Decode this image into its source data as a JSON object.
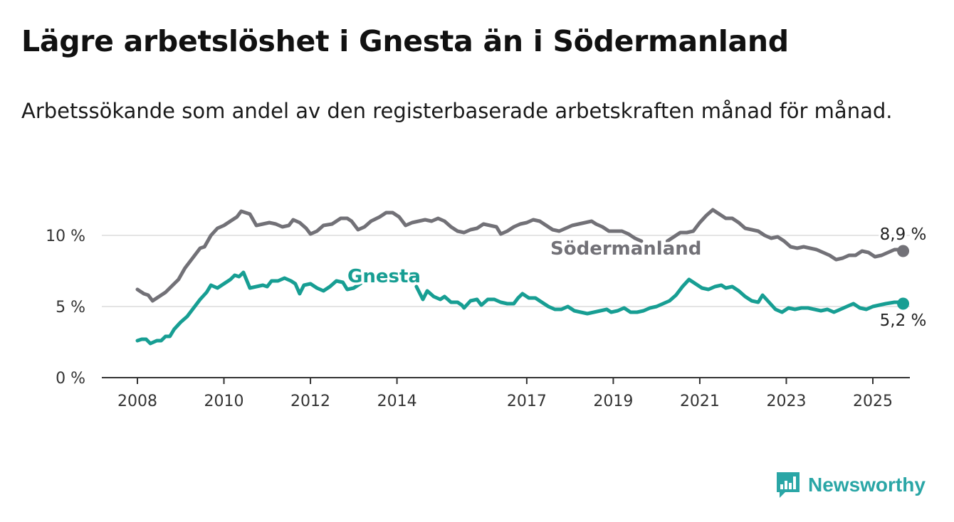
{
  "title": "Lägre arbetslöshet i Gnesta än i Södermanland",
  "subtitle": "Arbetssökande som andel av den registerbaserade arbetskraften månad för månad.",
  "brand": {
    "name": "Newsworthy",
    "icon": "newsworthy-logo-icon",
    "color": "#2aa6a6"
  },
  "chart_data": {
    "type": "line",
    "title": "Lägre arbetslöshet i Gnesta än i Södermanland",
    "subtitle": "Arbetssökande som andel av den registerbaserade arbetskraften månad för månad.",
    "xlabel": "",
    "ylabel": "",
    "xlim": [
      2008,
      2025
    ],
    "ylim": [
      0,
      10
    ],
    "x_ticks": [
      "2008",
      "2010",
      "2012",
      "2014",
      "2017",
      "2019",
      "2021",
      "2023",
      "2025"
    ],
    "y_ticks": [
      "0 %",
      "5 %",
      "10 %"
    ],
    "grid": "horizontal",
    "series": [
      {
        "name": "Södermanland",
        "color": "#727177",
        "end_label": "8,9 %",
        "points": [
          [
            2008.0,
            6.2
          ],
          [
            2008.15,
            5.9
          ],
          [
            2008.25,
            5.8
          ],
          [
            2008.35,
            5.4
          ],
          [
            2008.5,
            5.7
          ],
          [
            2008.65,
            6.0
          ],
          [
            2008.85,
            6.6
          ],
          [
            2008.95,
            6.9
          ],
          [
            2009.1,
            7.7
          ],
          [
            2009.3,
            8.5
          ],
          [
            2009.45,
            9.1
          ],
          [
            2009.55,
            9.2
          ],
          [
            2009.7,
            10.0
          ],
          [
            2009.85,
            10.5
          ],
          [
            2010.0,
            10.7
          ],
          [
            2010.15,
            11.0
          ],
          [
            2010.3,
            11.3
          ],
          [
            2010.4,
            11.7
          ],
          [
            2010.5,
            11.6
          ],
          [
            2010.6,
            11.5
          ],
          [
            2010.75,
            10.7
          ],
          [
            2010.9,
            10.8
          ],
          [
            2011.05,
            10.9
          ],
          [
            2011.2,
            10.8
          ],
          [
            2011.35,
            10.6
          ],
          [
            2011.5,
            10.7
          ],
          [
            2011.6,
            11.1
          ],
          [
            2011.75,
            10.9
          ],
          [
            2011.9,
            10.5
          ],
          [
            2012.0,
            10.1
          ],
          [
            2012.15,
            10.3
          ],
          [
            2012.3,
            10.7
          ],
          [
            2012.5,
            10.8
          ],
          [
            2012.7,
            11.2
          ],
          [
            2012.85,
            11.2
          ],
          [
            2012.95,
            11.0
          ],
          [
            2013.1,
            10.4
          ],
          [
            2013.25,
            10.6
          ],
          [
            2013.4,
            11.0
          ],
          [
            2013.6,
            11.3
          ],
          [
            2013.75,
            11.6
          ],
          [
            2013.9,
            11.6
          ],
          [
            2014.05,
            11.3
          ],
          [
            2014.2,
            10.7
          ],
          [
            2014.35,
            10.9
          ],
          [
            2014.5,
            11.0
          ],
          [
            2014.65,
            11.1
          ],
          [
            2014.8,
            11.0
          ],
          [
            2014.95,
            11.2
          ],
          [
            2015.1,
            11.0
          ],
          [
            2015.25,
            10.6
          ],
          [
            2015.4,
            10.3
          ],
          [
            2015.55,
            10.2
          ],
          [
            2015.7,
            10.4
          ],
          [
            2015.85,
            10.5
          ],
          [
            2016.0,
            10.8
          ],
          [
            2016.15,
            10.7
          ],
          [
            2016.3,
            10.6
          ],
          [
            2016.4,
            10.1
          ],
          [
            2016.55,
            10.3
          ],
          [
            2016.7,
            10.6
          ],
          [
            2016.85,
            10.8
          ],
          [
            2017.0,
            10.9
          ],
          [
            2017.15,
            11.1
          ],
          [
            2017.3,
            11.0
          ],
          [
            2017.45,
            10.7
          ],
          [
            2017.6,
            10.4
          ],
          [
            2017.75,
            10.3
          ],
          [
            2017.9,
            10.5
          ],
          [
            2018.05,
            10.7
          ],
          [
            2018.2,
            10.8
          ],
          [
            2018.35,
            10.9
          ],
          [
            2018.5,
            11.0
          ],
          [
            2018.6,
            10.8
          ],
          [
            2018.75,
            10.6
          ],
          [
            2018.9,
            10.3
          ],
          [
            2019.05,
            10.3
          ],
          [
            2019.2,
            10.3
          ],
          [
            2019.35,
            10.1
          ],
          [
            2019.5,
            9.8
          ],
          [
            2019.65,
            9.6
          ]
        ]
      },
      {
        "name": "",
        "color": "#727177",
        "points": [
          [
            2020.25,
            9.6
          ],
          [
            2020.4,
            9.9
          ],
          [
            2020.55,
            10.2
          ],
          [
            2020.7,
            10.2
          ],
          [
            2020.85,
            10.3
          ],
          [
            2021.0,
            10.9
          ],
          [
            2021.15,
            11.4
          ],
          [
            2021.3,
            11.8
          ],
          [
            2021.45,
            11.5
          ],
          [
            2021.6,
            11.2
          ],
          [
            2021.75,
            11.2
          ],
          [
            2021.9,
            10.9
          ],
          [
            2022.05,
            10.5
          ],
          [
            2022.2,
            10.4
          ],
          [
            2022.35,
            10.3
          ],
          [
            2022.5,
            10.0
          ],
          [
            2022.65,
            9.8
          ],
          [
            2022.8,
            9.9
          ],
          [
            2022.95,
            9.6
          ],
          [
            2023.1,
            9.2
          ],
          [
            2023.25,
            9.1
          ],
          [
            2023.4,
            9.2
          ],
          [
            2023.55,
            9.1
          ],
          [
            2023.7,
            9.0
          ],
          [
            2023.85,
            8.8
          ],
          [
            2024.0,
            8.6
          ],
          [
            2024.15,
            8.3
          ],
          [
            2024.3,
            8.4
          ],
          [
            2024.45,
            8.6
          ],
          [
            2024.6,
            8.6
          ],
          [
            2024.75,
            8.9
          ],
          [
            2024.9,
            8.8
          ],
          [
            2025.05,
            8.5
          ],
          [
            2025.2,
            8.6
          ],
          [
            2025.35,
            8.8
          ],
          [
            2025.5,
            9.0
          ],
          [
            2025.6,
            9.0
          ],
          [
            2025.7,
            8.9
          ]
        ]
      },
      {
        "name": "Gnesta",
        "color": "#179e93",
        "end_label": "5,2 %",
        "points": [
          [
            2008.0,
            2.6
          ],
          [
            2008.1,
            2.7
          ],
          [
            2008.2,
            2.7
          ],
          [
            2008.3,
            2.4
          ],
          [
            2008.45,
            2.6
          ],
          [
            2008.55,
            2.6
          ],
          [
            2008.65,
            2.9
          ],
          [
            2008.75,
            2.9
          ],
          [
            2008.85,
            3.4
          ],
          [
            2009.0,
            3.9
          ],
          [
            2009.15,
            4.3
          ],
          [
            2009.3,
            4.9
          ],
          [
            2009.45,
            5.5
          ],
          [
            2009.6,
            6.0
          ],
          [
            2009.7,
            6.5
          ],
          [
            2009.85,
            6.3
          ],
          [
            2010.0,
            6.6
          ],
          [
            2010.15,
            6.9
          ],
          [
            2010.25,
            7.2
          ],
          [
            2010.35,
            7.1
          ],
          [
            2010.45,
            7.4
          ],
          [
            2010.6,
            6.3
          ],
          [
            2010.75,
            6.4
          ],
          [
            2010.9,
            6.5
          ],
          [
            2011.0,
            6.4
          ],
          [
            2011.1,
            6.8
          ],
          [
            2011.25,
            6.8
          ],
          [
            2011.4,
            7.0
          ],
          [
            2011.55,
            6.8
          ],
          [
            2011.65,
            6.6
          ],
          [
            2011.75,
            5.9
          ],
          [
            2011.85,
            6.5
          ],
          [
            2012.0,
            6.6
          ],
          [
            2012.15,
            6.3
          ],
          [
            2012.3,
            6.1
          ],
          [
            2012.45,
            6.4
          ],
          [
            2012.6,
            6.8
          ],
          [
            2012.75,
            6.7
          ],
          [
            2012.85,
            6.2
          ],
          [
            2013.0,
            6.3
          ],
          [
            2013.15,
            6.6
          ],
          [
            2013.3,
            7.0
          ]
        ]
      },
      {
        "name": "",
        "color": "#179e93",
        "points": [
          [
            2014.45,
            6.4
          ],
          [
            2014.6,
            5.5
          ],
          [
            2014.7,
            6.1
          ],
          [
            2014.85,
            5.7
          ],
          [
            2015.0,
            5.5
          ],
          [
            2015.1,
            5.7
          ],
          [
            2015.25,
            5.3
          ],
          [
            2015.4,
            5.3
          ],
          [
            2015.5,
            5.1
          ],
          [
            2015.55,
            4.9
          ],
          [
            2015.7,
            5.4
          ],
          [
            2015.85,
            5.5
          ],
          [
            2015.95,
            5.1
          ],
          [
            2016.1,
            5.5
          ],
          [
            2016.25,
            5.5
          ],
          [
            2016.4,
            5.3
          ],
          [
            2016.55,
            5.2
          ],
          [
            2016.7,
            5.2
          ],
          [
            2016.8,
            5.6
          ],
          [
            2016.9,
            5.9
          ],
          [
            2017.05,
            5.6
          ],
          [
            2017.2,
            5.6
          ],
          [
            2017.35,
            5.3
          ],
          [
            2017.5,
            5.0
          ],
          [
            2017.65,
            4.8
          ],
          [
            2017.8,
            4.8
          ],
          [
            2017.95,
            5.0
          ],
          [
            2018.1,
            4.7
          ],
          [
            2018.25,
            4.6
          ],
          [
            2018.4,
            4.5
          ],
          [
            2018.55,
            4.6
          ],
          [
            2018.7,
            4.7
          ],
          [
            2018.85,
            4.8
          ],
          [
            2018.95,
            4.6
          ],
          [
            2019.1,
            4.7
          ],
          [
            2019.25,
            4.9
          ],
          [
            2019.4,
            4.6
          ],
          [
            2019.55,
            4.6
          ],
          [
            2019.7,
            4.7
          ],
          [
            2019.85,
            4.9
          ],
          [
            2020.0,
            5.0
          ],
          [
            2020.15,
            5.2
          ],
          [
            2020.3,
            5.4
          ],
          [
            2020.45,
            5.8
          ],
          [
            2020.6,
            6.4
          ],
          [
            2020.75,
            6.9
          ],
          [
            2020.9,
            6.6
          ],
          [
            2021.05,
            6.3
          ],
          [
            2021.2,
            6.2
          ],
          [
            2021.35,
            6.4
          ],
          [
            2021.5,
            6.5
          ],
          [
            2021.6,
            6.3
          ],
          [
            2021.75,
            6.4
          ],
          [
            2021.9,
            6.1
          ],
          [
            2022.05,
            5.7
          ],
          [
            2022.2,
            5.4
          ],
          [
            2022.35,
            5.3
          ],
          [
            2022.45,
            5.8
          ],
          [
            2022.6,
            5.3
          ],
          [
            2022.75,
            4.8
          ],
          [
            2022.9,
            4.6
          ],
          [
            2023.05,
            4.9
          ],
          [
            2023.2,
            4.8
          ],
          [
            2023.35,
            4.9
          ],
          [
            2023.5,
            4.9
          ],
          [
            2023.65,
            4.8
          ],
          [
            2023.8,
            4.7
          ],
          [
            2023.95,
            4.8
          ],
          [
            2024.1,
            4.6
          ],
          [
            2024.25,
            4.8
          ],
          [
            2024.4,
            5.0
          ],
          [
            2024.55,
            5.2
          ],
          [
            2024.7,
            4.9
          ],
          [
            2024.85,
            4.8
          ],
          [
            2025.0,
            5.0
          ],
          [
            2025.15,
            5.1
          ],
          [
            2025.3,
            5.2
          ],
          [
            2025.5,
            5.3
          ],
          [
            2025.6,
            5.3
          ],
          [
            2025.7,
            5.2
          ]
        ]
      }
    ]
  }
}
